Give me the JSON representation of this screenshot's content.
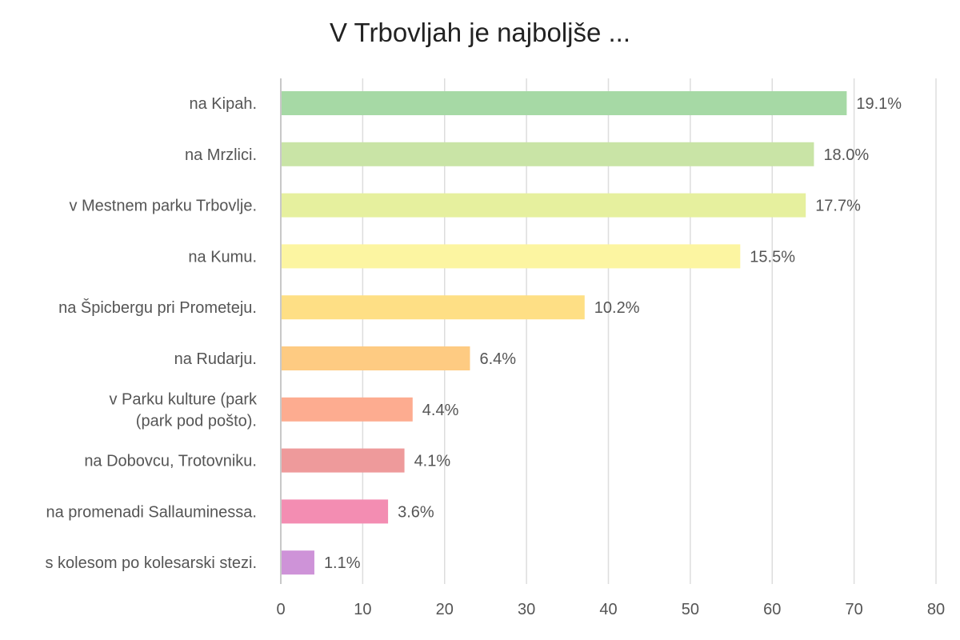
{
  "chart_data": {
    "type": "bar",
    "orientation": "horizontal",
    "title": "V Trbovljah je najboljše ...",
    "xlabel": "",
    "ylabel": "",
    "xlim": [
      0,
      80
    ],
    "x_ticks": [
      0,
      10,
      20,
      30,
      40,
      50,
      60,
      70,
      80
    ],
    "grid": true,
    "categories": [
      {
        "lines": [
          "na Kipah."
        ]
      },
      {
        "lines": [
          "na Mrzlici."
        ]
      },
      {
        "lines": [
          "v Mestnem parku Trbovlje."
        ]
      },
      {
        "lines": [
          "na Kumu."
        ]
      },
      {
        "lines": [
          "na Špicbergu pri Prometeju."
        ]
      },
      {
        "lines": [
          "na Rudarju."
        ]
      },
      {
        "lines": [
          "v Parku kulture (park",
          "(park pod pošto)."
        ]
      },
      {
        "lines": [
          "na Dobovcu, Trotovniku."
        ]
      },
      {
        "lines": [
          "na promenadi Sallauminessa."
        ]
      },
      {
        "lines": [
          "s kolesom po kolesarski stezi."
        ]
      }
    ],
    "values": [
      69,
      65,
      64,
      56,
      37,
      23,
      16,
      15,
      13,
      4
    ],
    "labels": [
      "19.1%",
      "18.0%",
      "17.7%",
      "15.5%",
      "10.2%",
      "6.4%",
      "4.4%",
      "4.1%",
      "3.6%",
      "1.1%"
    ],
    "colors": [
      "#a6d9a5",
      "#c9e4a6",
      "#e6f09e",
      "#fcf5a1",
      "#fedf85",
      "#fecb82",
      "#fdac90",
      "#ee9a9b",
      "#f38db2",
      "#ce93d8"
    ]
  }
}
